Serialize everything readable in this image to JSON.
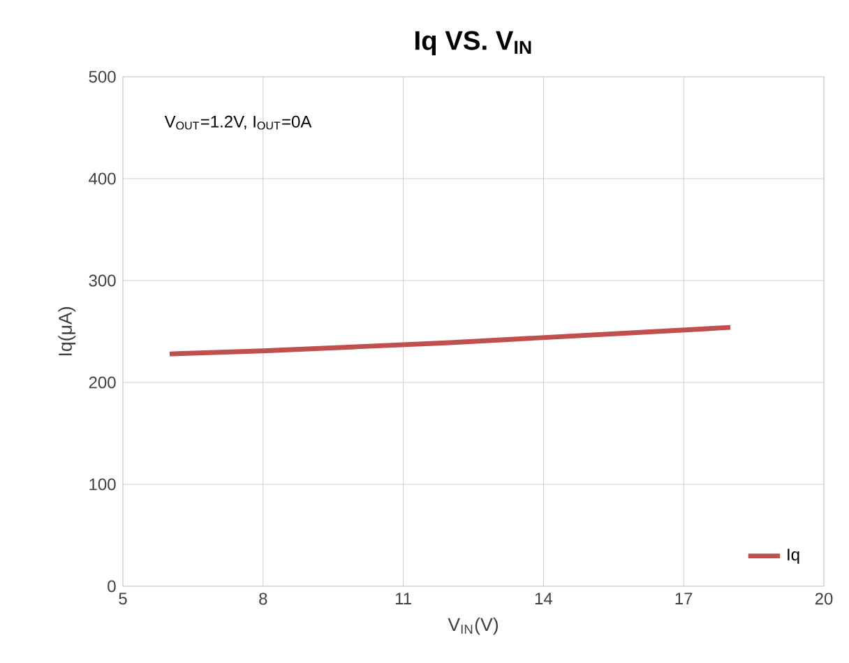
{
  "chart_data": {
    "type": "line",
    "title": "Iq VS. V$_{IN}$",
    "xlabel": "V$_{IN}$(V)",
    "ylabel": "Iq(μA)",
    "annotations": [
      "V$_{OUT}$=1.2V, I$_{OUT}$=0A"
    ],
    "x": [
      6,
      8,
      10,
      12,
      14,
      16,
      18
    ],
    "series": [
      {
        "name": "Iq",
        "color": "#c0504d",
        "values": [
          228,
          231,
          235,
          239,
          244,
          249,
          254
        ]
      }
    ],
    "xlim": [
      5,
      20
    ],
    "ylim": [
      0,
      500
    ],
    "xticks": [
      5,
      8,
      11,
      14,
      17,
      20
    ],
    "yticks": [
      0,
      100,
      200,
      300,
      400,
      500
    ],
    "grid": true,
    "legend": "bottom right"
  }
}
